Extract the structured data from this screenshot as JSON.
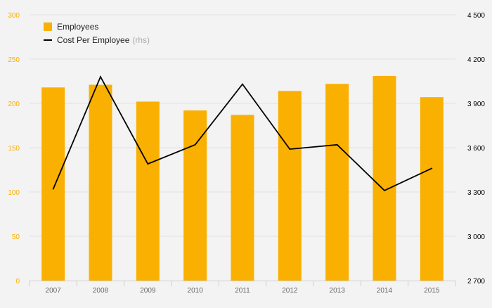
{
  "chart_data": {
    "type": "bar",
    "categories": [
      "2007",
      "2008",
      "2009",
      "2010",
      "2011",
      "2012",
      "2013",
      "2014",
      "2015"
    ],
    "series": [
      {
        "name": "Employees",
        "type": "bar",
        "axis": "left",
        "color": "#f9b000",
        "values": [
          218,
          221,
          202,
          192,
          187,
          214,
          222,
          231,
          207
        ]
      },
      {
        "name": "Cost Per Employee",
        "name_suffix": "(rhs)",
        "type": "line",
        "axis": "right",
        "color": "#000000",
        "values": [
          3320,
          4080,
          3490,
          3620,
          4030,
          3590,
          3620,
          3310,
          3460
        ]
      }
    ],
    "y_left": {
      "ylim": [
        0,
        300
      ],
      "ticks": [
        0,
        50,
        100,
        150,
        200,
        250,
        300
      ],
      "tick_labels": [
        "0",
        "50",
        "100",
        "150",
        "200",
        "250",
        "300"
      ],
      "color": "#f9b000"
    },
    "y_right": {
      "ylim": [
        2700,
        4500
      ],
      "ticks": [
        2700,
        3000,
        3300,
        3600,
        3900,
        4200,
        4500
      ],
      "tick_labels": [
        "2 700",
        "3 000",
        "3 300",
        "3 600",
        "3 900",
        "4 200",
        "4 500"
      ],
      "color": "#000000"
    },
    "grid": true,
    "legend_position": "top-left"
  }
}
